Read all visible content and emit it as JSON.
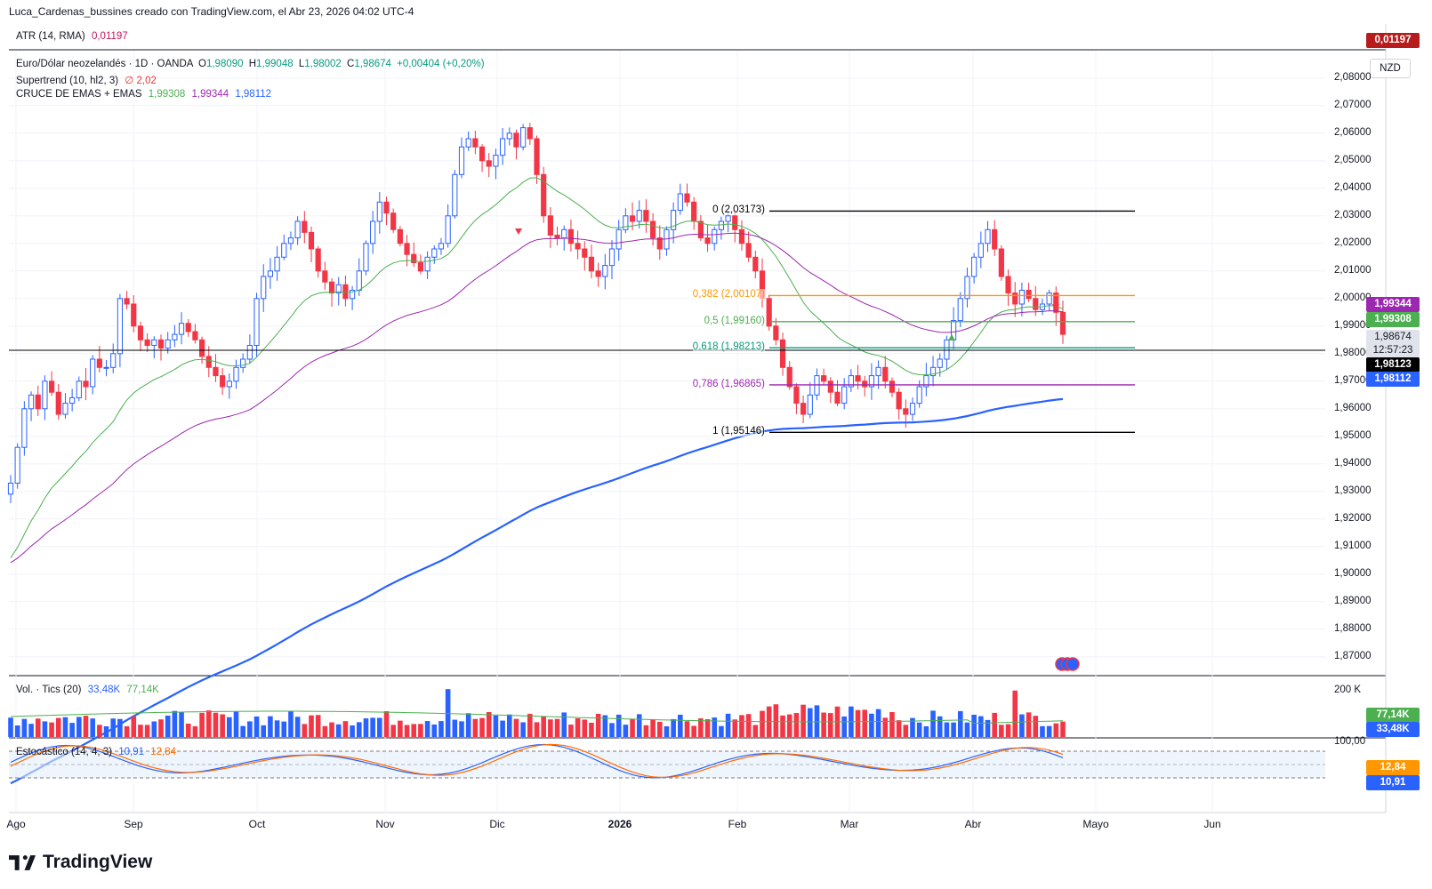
{
  "header": {
    "title": "Luca_Cardenas_bussines creado con TradingView.com, el Abr 23, 2026 04:02 UTC-4"
  },
  "atr": {
    "label": "ATR (14, RMA)",
    "value": "0,01197",
    "badge": "0,01197"
  },
  "main": {
    "symbol": "Euro/Dólar neozelandés · 1D · OANDA",
    "o_label": "O",
    "o": "1,98090",
    "h_label": "H",
    "h": "1,99048",
    "l_label": "L",
    "l": "1,98002",
    "c_label": "C",
    "c": "1,98674",
    "change": "+0,00404 (+0,20%)",
    "supertrend_label": "Supertrend (10, hl2, 3)",
    "supertrend_value": "∅ 2,02",
    "emas_label": "CRUCE DE EMAS + EMAS",
    "ema1": "1,99308",
    "ema2": "1,99344",
    "ema3": "1,98112",
    "currency": "NZD",
    "price_axis": [
      "2,08000",
      "2,07000",
      "2,06000",
      "2,05000",
      "2,04000",
      "2,03000",
      "2,02000",
      "2,01000",
      "2,00000",
      "1,99000",
      "1,98000",
      "1,97000",
      "1,96000",
      "1,95000",
      "1,94000",
      "1,93000",
      "1,92000",
      "1,91000",
      "1,90000",
      "1,89000",
      "1,88000",
      "1,87000"
    ],
    "badges": {
      "ema_purple": "1,99344",
      "ema_green": "1,99308",
      "price": "1,98674",
      "countdown": "12:57:23",
      "hline": "1,98123",
      "ema_blue": "1,98112"
    },
    "fib": [
      {
        "label": "0 (2,03173)",
        "price": 2.03173,
        "color": "#000000"
      },
      {
        "label": "0,382 (2,00107)",
        "price": 2.00107,
        "color": "#ff9800"
      },
      {
        "label": "0,5 (1,99160)",
        "price": 1.9916,
        "color": "#4caf50"
      },
      {
        "label": "0,618 (1,98213)",
        "price": 1.98213,
        "color": "#089981"
      },
      {
        "label": "0,786 (1,96865)",
        "price": 1.96865,
        "color": "#9c27b0"
      },
      {
        "label": "1 (1,95146)",
        "price": 1.95146,
        "color": "#000000"
      }
    ]
  },
  "volume": {
    "label": "Vol. · Tics (20)",
    "v1": "33,48K",
    "v2": "77,14K",
    "axis_top": "200 K",
    "badge_green": "77,14K",
    "badge_blue": "33,48K"
  },
  "stoch": {
    "label": "Estocástico (14, 4, 3)",
    "k": "10,91",
    "d": "12,84",
    "axis_top": "100,00",
    "badge_orange": "12,84",
    "badge_blue": "10,91"
  },
  "x_axis": [
    "Ago",
    "Sep",
    "Oct",
    "Nov",
    "Dic",
    "2026",
    "Feb",
    "Mar",
    "Abr",
    "Mayo",
    "Jun"
  ],
  "logo_text": "TradingView",
  "chart_data": {
    "type": "candlestick",
    "symbol": "EUR/NZD",
    "ylim": [
      1.865,
      2.085
    ],
    "candles_close_approx": [
      1.933,
      1.946,
      1.96,
      1.965,
      1.96,
      1.97,
      1.966,
      1.958,
      1.962,
      1.964,
      1.97,
      1.968,
      1.978,
      1.975,
      1.975,
      1.98,
      2.0,
      1.998,
      1.99,
      1.985,
      1.983,
      1.985,
      1.982,
      1.985,
      1.987,
      1.991,
      1.988,
      1.985,
      1.979,
      1.975,
      1.972,
      1.968,
      1.97,
      1.975,
      1.978,
      1.983,
      2.0,
      2.008,
      2.01,
      2.015,
      2.02,
      2.022,
      2.028,
      2.024,
      2.018,
      2.01,
      2.006,
      2.002,
      2.005,
      2.0,
      2.003,
      2.01,
      2.02,
      2.028,
      2.035,
      2.031,
      2.025,
      2.02,
      2.016,
      2.013,
      2.01,
      2.015,
      2.018,
      2.02,
      2.03,
      2.045,
      2.055,
      2.058,
      2.055,
      2.05,
      2.048,
      2.052,
      2.058,
      2.06,
      2.055,
      2.062,
      2.058,
      2.045,
      2.03,
      2.023,
      2.022,
      2.025,
      2.02,
      2.018,
      2.015,
      2.01,
      2.008,
      2.012,
      2.018,
      2.025,
      2.03,
      2.028,
      2.032,
      2.028,
      2.022,
      2.018,
      2.025,
      2.032,
      2.038,
      2.035,
      2.028,
      2.022,
      2.02,
      2.025,
      2.028,
      2.03,
      2.025,
      2.02,
      2.015,
      2.01,
      2.0,
      1.99,
      1.985,
      1.975,
      1.968,
      1.962,
      1.958,
      1.965,
      1.972,
      1.97,
      1.966,
      1.962,
      1.968,
      1.972,
      1.97,
      1.968,
      1.972,
      1.975,
      1.97,
      1.966,
      1.96,
      1.958,
      1.962,
      1.968,
      1.972,
      1.975,
      1.978,
      1.985,
      1.992,
      2.0,
      2.008,
      2.015,
      2.02,
      2.025,
      2.018,
      2.008,
      2.002,
      1.998,
      2.003,
      2.0,
      1.996,
      1.998,
      2.002,
      1.995,
      1.987
    ],
    "ema_series": [
      {
        "name": "EMA 1,99308",
        "color": "#4caf50"
      },
      {
        "name": "EMA 1,99344",
        "color": "#9c27b0"
      },
      {
        "name": "EMA 1,98112",
        "color": "#2962ff"
      }
    ],
    "horizontal_line": 1.98123,
    "fibonacci": [
      {
        "level": "0",
        "price": 2.03173
      },
      {
        "level": "0,382",
        "price": 2.00107
      },
      {
        "level": "0,5",
        "price": 1.9916
      },
      {
        "level": "0,618",
        "price": 1.98213
      },
      {
        "level": "0,786",
        "price": 1.96865
      },
      {
        "level": "1",
        "price": 1.95146
      }
    ],
    "x_categories": [
      "Ago",
      "Sep",
      "Oct",
      "Nov",
      "Dic",
      "2026",
      "Feb",
      "Mar",
      "Abr",
      "Mayo",
      "Jun"
    ]
  }
}
